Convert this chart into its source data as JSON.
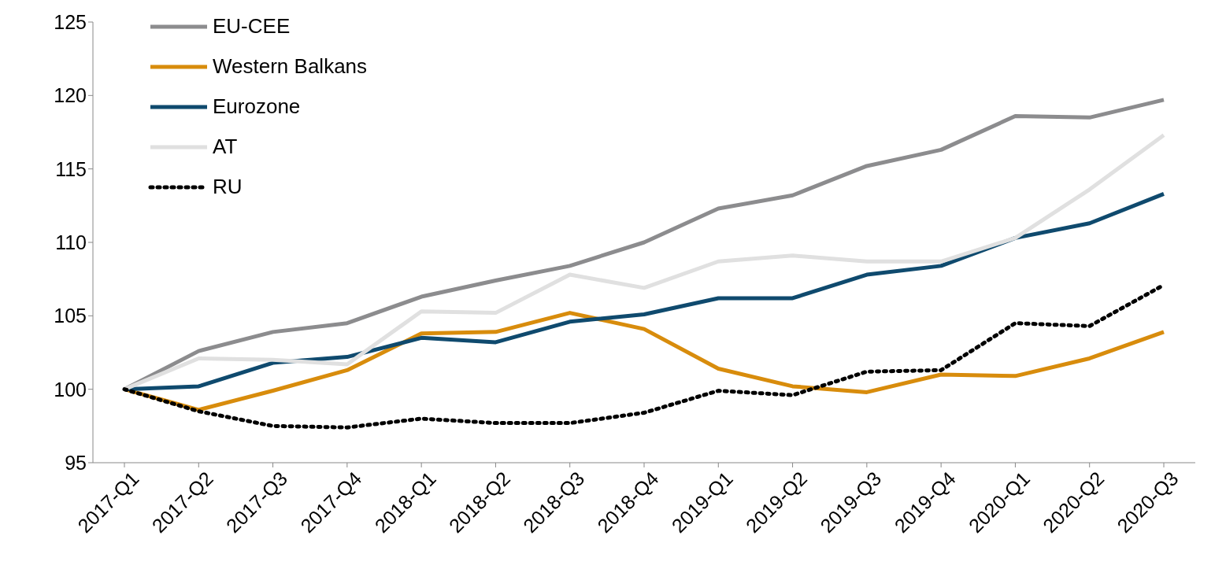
{
  "chart_data": {
    "type": "line",
    "categories": [
      "2017-Q1",
      "2017-Q2",
      "2017-Q3",
      "2017-Q4",
      "2018-Q1",
      "2018-Q2",
      "2018-Q3",
      "2018-Q4",
      "2019-Q1",
      "2019-Q2",
      "2019-Q3",
      "2019-Q4",
      "2020-Q1",
      "2020-Q2",
      "2020-Q3"
    ],
    "series": [
      {
        "name": "EU-CEE",
        "color": "#8c8c8e",
        "line_style": "solid",
        "values": [
          100,
          102.6,
          103.9,
          104.5,
          106.3,
          107.4,
          108.4,
          110.0,
          112.3,
          113.2,
          115.2,
          116.3,
          118.6,
          118.5,
          119.7
        ]
      },
      {
        "name": "Western Balkans",
        "color": "#d88c0c",
        "line_style": "solid",
        "values": [
          100,
          98.6,
          99.9,
          101.3,
          103.8,
          103.9,
          105.2,
          104.1,
          101.4,
          100.2,
          99.8,
          101.0,
          100.9,
          102.1,
          103.9
        ]
      },
      {
        "name": "Eurozone",
        "color": "#0f4a6e",
        "line_style": "solid",
        "values": [
          100,
          100.2,
          101.8,
          102.2,
          103.5,
          103.2,
          104.6,
          105.1,
          106.2,
          106.2,
          107.8,
          108.4,
          110.3,
          111.3,
          113.3
        ]
      },
      {
        "name": "AT",
        "color": "#e0e0e0",
        "line_style": "solid",
        "values": [
          100,
          102.1,
          102.0,
          101.7,
          105.3,
          105.2,
          107.8,
          106.9,
          108.7,
          109.1,
          108.7,
          108.7,
          110.3,
          113.6,
          117.3
        ]
      },
      {
        "name": "RU",
        "color": "#000000",
        "line_style": "dotted",
        "values": [
          100,
          98.5,
          97.5,
          97.4,
          98.0,
          97.7,
          97.7,
          98.4,
          99.9,
          99.6,
          101.2,
          101.3,
          104.5,
          104.3,
          107.1
        ]
      }
    ],
    "ylim": [
      95,
      125
    ],
    "yticks": [
      95,
      100,
      105,
      110,
      115,
      120,
      125
    ],
    "grid": false,
    "legend": "top left",
    "marker": "none"
  }
}
